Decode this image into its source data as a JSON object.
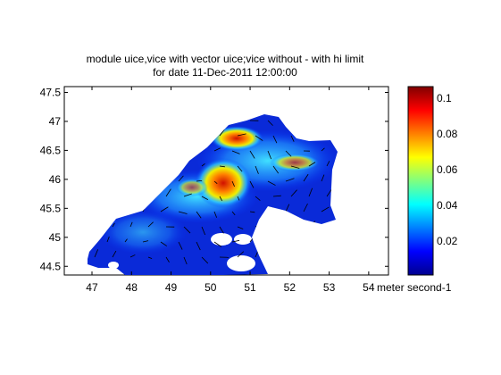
{
  "chart_data": {
    "type": "heatmap",
    "title": [
      "module uice,vice with vector uice;vice without - with hi limit",
      "for date 11-Dec-2011 12:00:00"
    ],
    "xlim": [
      46.3,
      54.5
    ],
    "xticks": [
      47,
      48,
      49,
      50,
      51,
      52,
      53,
      54
    ],
    "ylim": [
      44.35,
      47.6
    ],
    "yticks": [
      44.5,
      45,
      45.5,
      46,
      46.5,
      47,
      47.5
    ],
    "colorbar": {
      "label": "meter second-1",
      "lim": [
        0.001,
        0.1065
      ],
      "ticks": [
        0.02,
        0.04,
        0.06,
        0.08,
        0.1
      ],
      "colormap": "jet"
    }
  }
}
